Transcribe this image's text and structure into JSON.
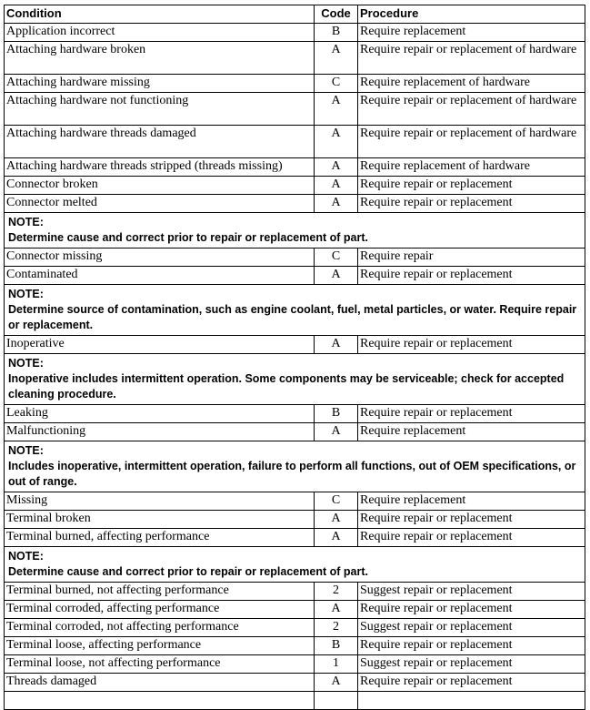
{
  "table": {
    "header": [
      "Condition",
      "Code",
      "Procedure"
    ],
    "rows": [
      {
        "condition": "Application incorrect",
        "code": "B",
        "procedure": "Require replacement"
      },
      {
        "condition": "Attaching hardware broken",
        "code": "A",
        "procedure": "Require repair or replacement of hardware"
      },
      {
        "condition": "Attaching hardware missing",
        "code": "C",
        "procedure": "Require replacement of hardware"
      },
      {
        "condition": "Attaching hardware not functioning",
        "code": "A",
        "procedure": "Require repair or replacement of hardware"
      },
      {
        "condition": "Attaching hardware threads damaged",
        "code": "A",
        "procedure": "Require repair or replacement of hardware"
      },
      {
        "condition": "Attaching hardware threads stripped (threads missing)",
        "code": "A",
        "procedure": "Require replacement of hardware"
      },
      {
        "condition": "Connector broken",
        "code": "A",
        "procedure": "Require repair or replacement"
      },
      {
        "condition": "Connector melted",
        "code": "A",
        "procedure": "Require repair or replacement"
      },
      {
        "label": "NOTE:",
        "note": "Determine cause and correct prior to repair or replacement of part."
      },
      {
        "condition": "Connector missing",
        "code": "C",
        "procedure": "Require repair"
      },
      {
        "condition": "Contaminated",
        "code": "A",
        "procedure": "Require repair or replacement"
      },
      {
        "label": "NOTE:",
        "note": "Determine source of contamination, such as engine coolant, fuel, metal particles, or water. Require repair or replacement."
      },
      {
        "condition": "Inoperative",
        "code": "A",
        "procedure": "Require repair or replacement"
      },
      {
        "label": "NOTE:",
        "note": "Inoperative includes intermittent operation. Some components may be serviceable; check for accepted cleaning procedure."
      },
      {
        "condition": "Leaking",
        "code": "B",
        "procedure": "Require repair or replacement"
      },
      {
        "condition": "Malfunctioning",
        "code": "A",
        "procedure": "Require replacement"
      },
      {
        "label": "NOTE:",
        "note": "Includes inoperative, intermittent operation, failure to perform all functions, out of OEM specifications, or out of range."
      },
      {
        "condition": "Missing",
        "code": "C",
        "procedure": "Require replacement"
      },
      {
        "condition": "Terminal broken",
        "code": "A",
        "procedure": "Require repair or replacement"
      },
      {
        "condition": "Terminal burned, affecting performance",
        "code": "A",
        "procedure": "Require repair or replacement"
      },
      {
        "label": "NOTE:",
        "note": "Determine cause and correct prior to repair or replacement of part."
      },
      {
        "condition": "Terminal burned, not affecting performance",
        "code": "2",
        "procedure": "Suggest repair or replacement"
      },
      {
        "condition": "Terminal corroded, affecting performance",
        "code": "A",
        "procedure": "Require repair or replacement"
      },
      {
        "condition": "Terminal corroded, not affecting performance",
        "code": "2",
        "procedure": "Suggest repair or replacement"
      },
      {
        "condition": "Terminal loose, affecting performance",
        "code": "B",
        "procedure": "Require repair or replacement"
      },
      {
        "condition": "Terminal loose, not affecting performance",
        "code": "1",
        "procedure": "Suggest repair or replacement"
      },
      {
        "condition": "Threads damaged",
        "code": "A",
        "procedure": "Require repair or replacement"
      }
    ]
  }
}
